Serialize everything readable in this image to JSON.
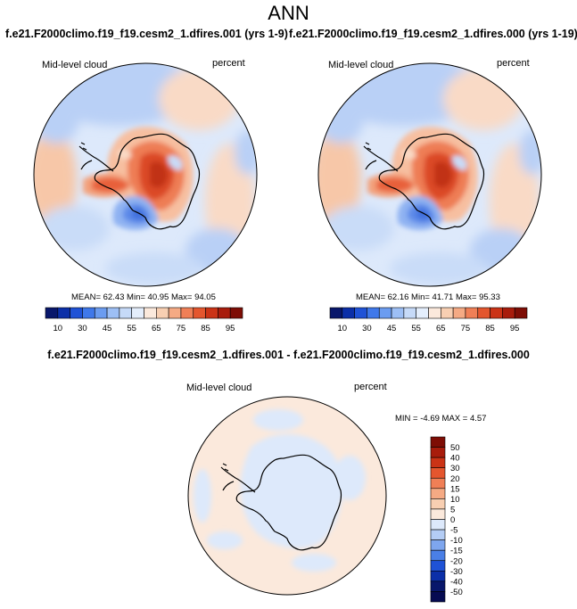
{
  "title": "ANN",
  "panels": [
    {
      "case_title": "f.e21.F2000climo.f19_f19.cesm2_1.dfires.001 (yrs 1-9)",
      "variable": "Mid-level cloud",
      "units": "percent",
      "stats": "MEAN= 62.43  Min= 40.95  Max= 94.05"
    },
    {
      "case_title": "f.e21.F2000climo.f19_f19.cesm2_1.dfires.000 (yrs 1-19)",
      "variable": "Mid-level cloud",
      "units": "percent",
      "stats": "MEAN= 62.16  Min= 41.71  Max= 95.33"
    }
  ],
  "colorbar_top": {
    "labels": [
      "10",
      "30",
      "45",
      "55",
      "65",
      "75",
      "85",
      "95"
    ],
    "colors": [
      "#08176b",
      "#0b2fa8",
      "#1f52d6",
      "#3f78ea",
      "#6b9cf0",
      "#9dbff5",
      "#c6daf8",
      "#e4eefc",
      "#fbe9dc",
      "#f8cfb2",
      "#f5aa84",
      "#f07f56",
      "#e4562e",
      "#cb3316",
      "#a81c0c",
      "#7e0d05"
    ]
  },
  "difference": {
    "title": "f.e21.F2000climo.f19_f19.cesm2_1.dfires.001 - f.e21.F2000climo.f19_f19.cesm2_1.dfires.000",
    "variable": "Mid-level cloud",
    "units": "percent",
    "minmax": "MIN = -4.69 MAX =  4.57",
    "colorbar_labels": [
      "50",
      "40",
      "30",
      "20",
      "15",
      "10",
      "5",
      "0",
      "-5",
      "-10",
      "-15",
      "-20",
      "-30",
      "-40",
      "-50"
    ],
    "colorbar_colors": [
      "#7e0d05",
      "#a81c0c",
      "#cb3316",
      "#e4562e",
      "#f07f56",
      "#f5aa84",
      "#f8cfb2",
      "#fbe9dc",
      "#dde9fb",
      "#b4cdf5",
      "#7ea6ee",
      "#4a7fe6",
      "#1f52d6",
      "#0b2fa8",
      "#08176b",
      "#060b52"
    ]
  }
}
